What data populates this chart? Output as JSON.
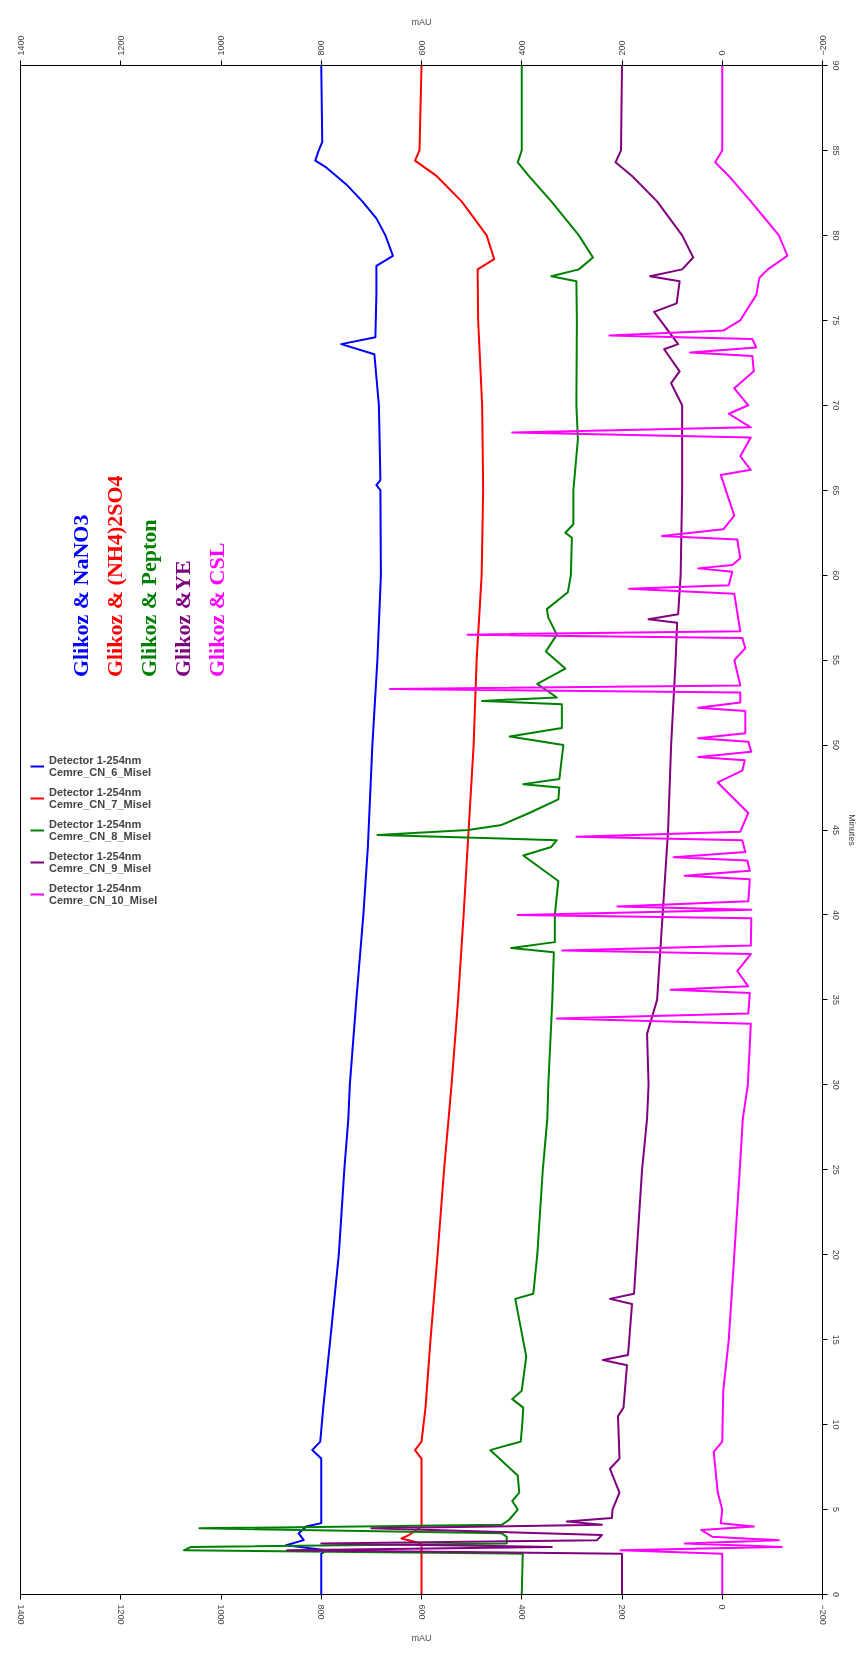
{
  "chart_data": {
    "type": "line",
    "orientation": "horizontal",
    "xlabel": "mAU",
    "x2label": "mAU",
    "ylabel": "Minutes",
    "xlim": [
      1400,
      -200
    ],
    "xticks": [
      1400,
      1200,
      1000,
      800,
      600,
      400,
      200,
      0,
      -200
    ],
    "x2lim": [
      1400,
      -200
    ],
    "x2ticks": [
      1400,
      1200,
      1000,
      800,
      600,
      400,
      200,
      0,
      -200
    ],
    "ylim": [
      0,
      90
    ],
    "yticks": [
      0,
      5,
      10,
      15,
      20,
      25,
      30,
      35,
      40,
      45,
      50,
      55,
      60,
      65,
      70,
      75,
      80,
      85,
      90
    ],
    "grid": false,
    "legend": "left",
    "annotations": [
      "Glikoz & NaNO3",
      "Glikoz & (NH4)2SO4",
      "Glikoz & Pepton",
      "Glikoz &YE",
      "Glikoz & CSL"
    ],
    "series": [
      {
        "name": "Detector 1-254nm\nCemre_CN_6_Misel",
        "color": "#0000ff",
        "x": [
          0,
          2.4,
          2.6,
          2.9,
          3.2,
          3.6,
          4.0,
          4.2,
          5,
          8.0,
          8.5,
          9,
          11,
          15,
          20,
          25,
          28,
          30,
          35,
          40,
          44,
          50,
          55,
          60,
          65,
          65.3,
          65.6,
          70,
          73,
          73.6,
          74,
          76.5,
          78.2,
          78.8,
          80,
          81,
          82,
          83,
          84,
          84.4,
          85,
          85.5,
          90
        ],
        "values": [
          800,
          800,
          790,
          870,
          835,
          845,
          830,
          800,
          800,
          800,
          818,
          802,
          796,
          782,
          765,
          754,
          746,
          743,
          730,
          716,
          707,
          698,
          688,
          681,
          682,
          690,
          682,
          685,
          694,
          760,
          692,
          690,
          690,
          657,
          672,
          690,
          718,
          750,
          790,
          812,
          805,
          798,
          800
        ]
      },
      {
        "name": "Detector 1-254nm\nCemre_CN_7_Misel",
        "color": "#ff0000",
        "x": [
          0,
          2.4,
          3.0,
          3.3,
          3.5,
          4.0,
          8.0,
          8.5,
          9,
          11,
          15,
          20,
          25,
          28,
          30,
          35,
          40,
          44,
          50,
          55,
          60,
          65,
          70,
          75,
          78,
          78.6,
          80,
          82,
          83.5,
          84.4,
          85,
          90
        ],
        "values": [
          600,
          600,
          600,
          640,
          625,
          600,
          600,
          613,
          600,
          592,
          582,
          568,
          555,
          546,
          540,
          527,
          516,
          508,
          496,
          490,
          480,
          477,
          479,
          487,
          488,
          455,
          470,
          520,
          570,
          613,
          604,
          600
        ]
      },
      {
        "name": "Detector 1-254nm\nCemre_CN_8_Misel",
        "color": "#008000",
        "x": [
          0,
          2.4,
          2.6,
          2.8,
          3.0,
          3.4,
          3.6,
          3.9,
          4.1,
          4.4,
          5,
          5.5,
          6,
          7,
          8.5,
          9,
          10,
          11,
          11.5,
          12,
          14,
          17.4,
          17.7,
          20,
          25,
          28,
          30,
          35,
          37.8,
          38.05,
          38.4,
          40,
          42,
          43.5,
          44,
          44.4,
          44.7,
          45.0,
          45.3,
          46,
          46.8,
          47.5,
          47.7,
          48,
          50,
          50.5,
          51,
          52.4,
          52.6,
          52.8,
          53.6,
          54.5,
          55.5,
          56.5,
          57.5,
          58,
          59,
          60,
          62.2,
          62.5,
          63,
          65,
          68,
          70,
          75,
          77.3,
          77.6,
          78,
          78.7,
          80,
          82,
          83.5,
          84.3,
          85,
          90
        ],
        "values": [
          400,
          398,
          1074,
          1060,
          430,
          430,
          440,
          1043,
          440,
          425,
          408,
          419,
          405,
          408,
          463,
          402,
          399,
          397,
          419,
          400,
          391,
          413,
          377,
          369,
          358,
          349,
          347,
          339,
          336,
          421,
          334,
          334,
          327,
          397,
          341,
          330,
          688,
          507,
          440,
          385,
          327,
          325,
          397,
          325,
          317,
          424,
          320,
          320,
          479,
          330,
          369,
          313,
          352,
          330,
          347,
          350,
          308,
          302,
          300,
          313,
          297,
          297,
          288,
          291,
          290,
          291,
          341,
          286,
          258,
          286,
          341,
          386,
          408,
          400,
          400
        ]
      },
      {
        "name": "Detector 1-254nm\nCemre_CN_9_Misel",
        "color": "#800080",
        "x": [
          0,
          2.4,
          2.6,
          2.8,
          3.0,
          3.2,
          3.5,
          3.9,
          4.1,
          4.3,
          4.5,
          5,
          6,
          7.4,
          8,
          10.5,
          11,
          13.5,
          13.8,
          14.1,
          17.1,
          17.4,
          17.7,
          20,
          25,
          28,
          30,
          33,
          35,
          40,
          45,
          50,
          55,
          57.2,
          57.4,
          57.7,
          60,
          65,
          70,
          71.3,
          72,
          73.3,
          73.6,
          75.5,
          76,
          77.3,
          77.6,
          78,
          78.7,
          80,
          82,
          83.5,
          84.3,
          85,
          90
        ],
        "values": [
          200,
          200,
          868,
          340,
          800,
          250,
          240,
          700,
          240,
          310,
          220,
          219,
          205,
          224,
          205,
          208,
          197,
          190,
          238,
          188,
          180,
          224,
          176,
          171,
          160,
          150,
          147,
          150,
          130,
          119,
          108,
          102,
          93,
          90,
          147,
          88,
          83,
          80,
          80,
          102,
          85,
          116,
          88,
          136,
          91,
          85,
          144,
          80,
          58,
          80,
          130,
          180,
          213,
          202,
          200
        ]
      },
      {
        "name": "Detector 1-254nm\nCemre_CN_10_Misel",
        "color": "#ff00ff",
        "x": [
          0,
          2.4,
          2.6,
          2.8,
          3.0,
          3.2,
          3.4,
          3.8,
          4.0,
          4.2,
          5,
          6,
          8.4,
          9,
          12,
          15,
          20,
          25,
          28,
          30,
          33.6,
          33.9,
          34.2,
          35.4,
          35.6,
          35.8,
          36.7,
          37.7,
          37.9,
          38.2,
          39.8,
          40.0,
          40.3,
          40.5,
          40.8,
          42.1,
          42.3,
          42.6,
          43.2,
          43.4,
          43.7,
          44.4,
          44.6,
          44.9,
          46,
          47.8,
          48.5,
          49.1,
          49.3,
          49.6,
          50.2,
          50.4,
          50.7,
          52.0,
          52.2,
          52.5,
          53.1,
          53.3,
          53.5,
          55,
          55.7,
          56.3,
          56.5,
          56.7,
          58.9,
          59.2,
          59.4,
          60.2,
          60.4,
          60.6,
          61,
          62.1,
          62.3,
          62.7,
          63.5,
          65.9,
          66.2,
          67,
          68.1,
          68.4,
          68.7,
          69.5,
          70,
          71,
          72,
          72.9,
          73.1,
          73.4,
          73.9,
          74.1,
          74.4,
          75,
          76.5,
          77.5,
          78,
          78.8,
          80,
          82,
          83.5,
          84.3,
          85,
          90
        ],
        "values": [
          0,
          0,
          203,
          -119,
          75,
          -113,
          20,
          42,
          -63,
          3,
          0,
          9,
          17,
          0,
          -2,
          -13,
          -24,
          -35,
          -41,
          -51,
          -57,
          330,
          -52,
          -55,
          103,
          -52,
          -30,
          -57,
          319,
          -57,
          -58,
          408,
          -58,
          209,
          -52,
          -55,
          75,
          -55,
          -50,
          97,
          -46,
          -40,
          291,
          -36,
          -52,
          9,
          -40,
          -45,
          48,
          -58,
          -52,
          48,
          -46,
          -46,
          48,
          -36,
          -36,
          663,
          -36,
          -24,
          -46,
          -40,
          508,
          -36,
          -24,
          186,
          -13,
          -20,
          48,
          -20,
          -36,
          -30,
          120,
          -2,
          -24,
          3,
          -57,
          -36,
          -57,
          419,
          -57,
          -13,
          -52,
          -24,
          -63,
          -60,
          64,
          -68,
          -60,
          225,
          -2,
          -36,
          -68,
          -74,
          -91,
          -130,
          -113,
          -57,
          -13,
          14,
          0,
          0
        ]
      }
    ]
  }
}
